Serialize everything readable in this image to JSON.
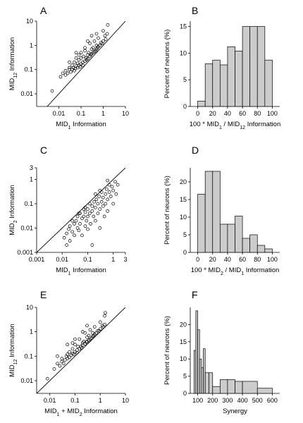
{
  "chart_data": [
    {
      "panel": "A",
      "type": "scatter",
      "xlabel": "MID1 Information",
      "ylabel": "MID12 Information",
      "xscale": "log",
      "yscale": "log",
      "xlim": [
        0.001,
        10
      ],
      "ylim": [
        0.003,
        10
      ],
      "xticks": [
        "0.01",
        "0.1",
        "1",
        "10"
      ],
      "yticks": [
        "0.01",
        "0.1",
        "1",
        "10"
      ],
      "diagonal": true,
      "points": [
        [
          0.005,
          0.013
        ],
        [
          0.012,
          0.05
        ],
        [
          0.015,
          0.07
        ],
        [
          0.02,
          0.06
        ],
        [
          0.02,
          0.09
        ],
        [
          0.025,
          0.07
        ],
        [
          0.03,
          0.1
        ],
        [
          0.03,
          0.12
        ],
        [
          0.035,
          0.08
        ],
        [
          0.04,
          0.1
        ],
        [
          0.04,
          0.15
        ],
        [
          0.045,
          0.12
        ],
        [
          0.05,
          0.09
        ],
        [
          0.05,
          0.2
        ],
        [
          0.055,
          0.11
        ],
        [
          0.06,
          0.14
        ],
        [
          0.06,
          0.3
        ],
        [
          0.07,
          0.12
        ],
        [
          0.07,
          0.18
        ],
        [
          0.08,
          0.15
        ],
        [
          0.08,
          0.25
        ],
        [
          0.09,
          0.13
        ],
        [
          0.1,
          0.17
        ],
        [
          0.1,
          0.3
        ],
        [
          0.1,
          0.5
        ],
        [
          0.12,
          0.2
        ],
        [
          0.12,
          0.15
        ],
        [
          0.13,
          0.35
        ],
        [
          0.15,
          0.22
        ],
        [
          0.15,
          0.8
        ],
        [
          0.17,
          0.3
        ],
        [
          0.18,
          0.25
        ],
        [
          0.2,
          0.4
        ],
        [
          0.2,
          0.28
        ],
        [
          0.22,
          0.5
        ],
        [
          0.25,
          0.35
        ],
        [
          0.25,
          1.2
        ],
        [
          0.28,
          0.4
        ],
        [
          0.3,
          0.45
        ],
        [
          0.3,
          0.7
        ],
        [
          0.35,
          0.5
        ],
        [
          0.35,
          0.8
        ],
        [
          0.4,
          0.55
        ],
        [
          0.4,
          1.5
        ],
        [
          0.45,
          0.6
        ],
        [
          0.5,
          0.7
        ],
        [
          0.5,
          1.0
        ],
        [
          0.55,
          0.8
        ],
        [
          0.6,
          0.9
        ],
        [
          0.6,
          2.0
        ],
        [
          0.7,
          1.0
        ],
        [
          0.8,
          1.3
        ],
        [
          0.9,
          1.2
        ],
        [
          1.0,
          1.5
        ],
        [
          1.0,
          4.0
        ],
        [
          1.2,
          2.5
        ],
        [
          1.3,
          1.8
        ],
        [
          1.5,
          3.0
        ],
        [
          1.6,
          7.0
        ],
        [
          0.03,
          0.2
        ],
        [
          0.06,
          0.5
        ],
        [
          0.08,
          0.4
        ],
        [
          0.5,
          3.0
        ],
        [
          0.2,
          1.5
        ],
        [
          0.15,
          0.6
        ],
        [
          0.3,
          2.5
        ]
      ]
    },
    {
      "panel": "B",
      "type": "bar",
      "xlabel": "100 * MID1 / MID12 Information",
      "ylabel": "Percent of neurons (%)",
      "xlim": [
        -10,
        110
      ],
      "ylim": [
        0,
        16
      ],
      "xticks": [
        "0",
        "20",
        "40",
        "60",
        "80",
        "100"
      ],
      "yticks": [
        "0",
        "5",
        "10",
        "15"
      ],
      "bin_edges": [
        0,
        10,
        20,
        30,
        40,
        50,
        60,
        70,
        80,
        90,
        100
      ],
      "values": [
        1,
        8,
        8.7,
        7.8,
        11.2,
        10.4,
        15,
        15,
        15,
        8.7
      ]
    },
    {
      "panel": "C",
      "type": "scatter",
      "xlabel": "MID1 Information",
      "ylabel": "MID2 Information",
      "xscale": "log",
      "yscale": "log",
      "xlim": [
        0.001,
        3
      ],
      "ylim": [
        0.001,
        3
      ],
      "xticks": [
        "0.001",
        "0.01",
        "0.1",
        "1",
        "3"
      ],
      "yticks": [
        "0.001",
        "0.01",
        "0.1",
        "1",
        "3"
      ],
      "diagonal": true,
      "points": [
        [
          0.012,
          0.004
        ],
        [
          0.015,
          0.002
        ],
        [
          0.015,
          0.006
        ],
        [
          0.018,
          0.009
        ],
        [
          0.02,
          0.003
        ],
        [
          0.02,
          0.012
        ],
        [
          0.025,
          0.007
        ],
        [
          0.03,
          0.015
        ],
        [
          0.03,
          0.005
        ],
        [
          0.035,
          0.02
        ],
        [
          0.04,
          0.01
        ],
        [
          0.04,
          0.03
        ],
        [
          0.045,
          0.008
        ],
        [
          0.05,
          0.04
        ],
        [
          0.05,
          0.015
        ],
        [
          0.06,
          0.025
        ],
        [
          0.06,
          0.005
        ],
        [
          0.07,
          0.03
        ],
        [
          0.07,
          0.06
        ],
        [
          0.08,
          0.012
        ],
        [
          0.08,
          0.045
        ],
        [
          0.09,
          0.02
        ],
        [
          0.1,
          0.06
        ],
        [
          0.1,
          0.009
        ],
        [
          0.1,
          0.03
        ],
        [
          0.12,
          0.04
        ],
        [
          0.12,
          0.1
        ],
        [
          0.13,
          0.015
        ],
        [
          0.15,
          0.05
        ],
        [
          0.15,
          0.08
        ],
        [
          0.15,
          0.002
        ],
        [
          0.17,
          0.03
        ],
        [
          0.18,
          0.12
        ],
        [
          0.2,
          0.02
        ],
        [
          0.2,
          0.07
        ],
        [
          0.22,
          0.15
        ],
        [
          0.25,
          0.04
        ],
        [
          0.25,
          0.1
        ],
        [
          0.28,
          0.2
        ],
        [
          0.3,
          0.06
        ],
        [
          0.3,
          0.01
        ],
        [
          0.35,
          0.12
        ],
        [
          0.35,
          0.3
        ],
        [
          0.4,
          0.08
        ],
        [
          0.4,
          0.18
        ],
        [
          0.45,
          0.03
        ],
        [
          0.5,
          0.25
        ],
        [
          0.5,
          0.1
        ],
        [
          0.55,
          0.4
        ],
        [
          0.6,
          0.15
        ],
        [
          0.6,
          0.05
        ],
        [
          0.7,
          0.3
        ],
        [
          0.7,
          0.6
        ],
        [
          0.8,
          0.2
        ],
        [
          0.9,
          0.5
        ],
        [
          1.0,
          0.1
        ],
        [
          1.0,
          0.35
        ],
        [
          1.2,
          0.8
        ],
        [
          1.3,
          0.25
        ],
        [
          1.5,
          0.6
        ],
        [
          0.045,
          0.04
        ],
        [
          0.025,
          0.02
        ],
        [
          0.08,
          0.07
        ],
        [
          0.3,
          0.35
        ],
        [
          0.6,
          0.9
        ],
        [
          0.2,
          0.25
        ]
      ]
    },
    {
      "panel": "D",
      "type": "bar",
      "xlabel": "100 * MID2 / MID1 Information",
      "ylabel": "Percent of neurons (%)",
      "xlim": [
        -10,
        110
      ],
      "ylim": [
        0,
        24
      ],
      "xticks": [
        "0",
        "20",
        "40",
        "60",
        "80",
        "100"
      ],
      "yticks": [
        "0",
        "5",
        "10",
        "15",
        "20"
      ],
      "bin_edges": [
        0,
        10,
        20,
        30,
        40,
        50,
        60,
        70,
        80,
        90,
        100
      ],
      "values": [
        16.5,
        23,
        23,
        8,
        8,
        10.3,
        4,
        5,
        2,
        1
      ]
    },
    {
      "panel": "E",
      "type": "scatter",
      "xlabel": "MID1 + MID2 Information",
      "ylabel": "MID12 Information",
      "xscale": "log",
      "yscale": "log",
      "xlim": [
        0.003,
        10
      ],
      "ylim": [
        0.003,
        10
      ],
      "xticks": [
        "0.01",
        "0.1",
        "1",
        "10"
      ],
      "yticks": [
        "0.01",
        "0.1",
        "1",
        "10"
      ],
      "diagonal": true,
      "points": [
        [
          0.008,
          0.012
        ],
        [
          0.015,
          0.03
        ],
        [
          0.02,
          0.05
        ],
        [
          0.025,
          0.04
        ],
        [
          0.03,
          0.06
        ],
        [
          0.03,
          0.08
        ],
        [
          0.035,
          0.05
        ],
        [
          0.04,
          0.07
        ],
        [
          0.045,
          0.1
        ],
        [
          0.05,
          0.08
        ],
        [
          0.05,
          0.12
        ],
        [
          0.06,
          0.09
        ],
        [
          0.06,
          0.15
        ],
        [
          0.07,
          0.11
        ],
        [
          0.08,
          0.13
        ],
        [
          0.08,
          0.2
        ],
        [
          0.09,
          0.12
        ],
        [
          0.1,
          0.15
        ],
        [
          0.1,
          0.3
        ],
        [
          0.12,
          0.18
        ],
        [
          0.12,
          0.14
        ],
        [
          0.13,
          0.25
        ],
        [
          0.15,
          0.2
        ],
        [
          0.15,
          0.5
        ],
        [
          0.17,
          0.25
        ],
        [
          0.18,
          0.22
        ],
        [
          0.2,
          0.35
        ],
        [
          0.2,
          0.28
        ],
        [
          0.22,
          0.4
        ],
        [
          0.25,
          0.32
        ],
        [
          0.25,
          0.9
        ],
        [
          0.28,
          0.38
        ],
        [
          0.3,
          0.4
        ],
        [
          0.3,
          0.6
        ],
        [
          0.35,
          0.45
        ],
        [
          0.35,
          0.7
        ],
        [
          0.4,
          0.5
        ],
        [
          0.4,
          1.2
        ],
        [
          0.45,
          0.55
        ],
        [
          0.5,
          0.65
        ],
        [
          0.5,
          0.9
        ],
        [
          0.55,
          0.7
        ],
        [
          0.6,
          0.8
        ],
        [
          0.6,
          1.6
        ],
        [
          0.7,
          0.9
        ],
        [
          0.8,
          1.1
        ],
        [
          0.9,
          1.1
        ],
        [
          1.0,
          1.3
        ],
        [
          1.0,
          2.5
        ],
        [
          1.2,
          1.8
        ],
        [
          1.3,
          1.6
        ],
        [
          1.5,
          2.0
        ],
        [
          1.5,
          4.5
        ],
        [
          1.6,
          6.0
        ],
        [
          0.02,
          0.1
        ],
        [
          0.05,
          0.3
        ],
        [
          0.08,
          0.35
        ],
        [
          0.3,
          1.8
        ],
        [
          0.2,
          1.0
        ],
        [
          0.1,
          0.5
        ]
      ]
    },
    {
      "panel": "F",
      "type": "bar",
      "xlabel": "Synergy",
      "ylabel": "Percent of neurons (%)",
      "xlim": [
        50,
        650
      ],
      "ylim": [
        0,
        25
      ],
      "xticks": [
        "100",
        "200",
        "300",
        "400",
        "500",
        "600"
      ],
      "yticks": [
        "0",
        "5",
        "10",
        "15",
        "20"
      ],
      "bin_edges": [
        75,
        87.5,
        100,
        112.5,
        125,
        137.5,
        150,
        175,
        200,
        250,
        300,
        350,
        400,
        500,
        600
      ],
      "values": [
        12.5,
        24,
        18.5,
        10,
        7.5,
        13,
        6,
        6,
        2,
        4,
        4,
        3.5,
        3.5,
        1.5
      ]
    }
  ]
}
